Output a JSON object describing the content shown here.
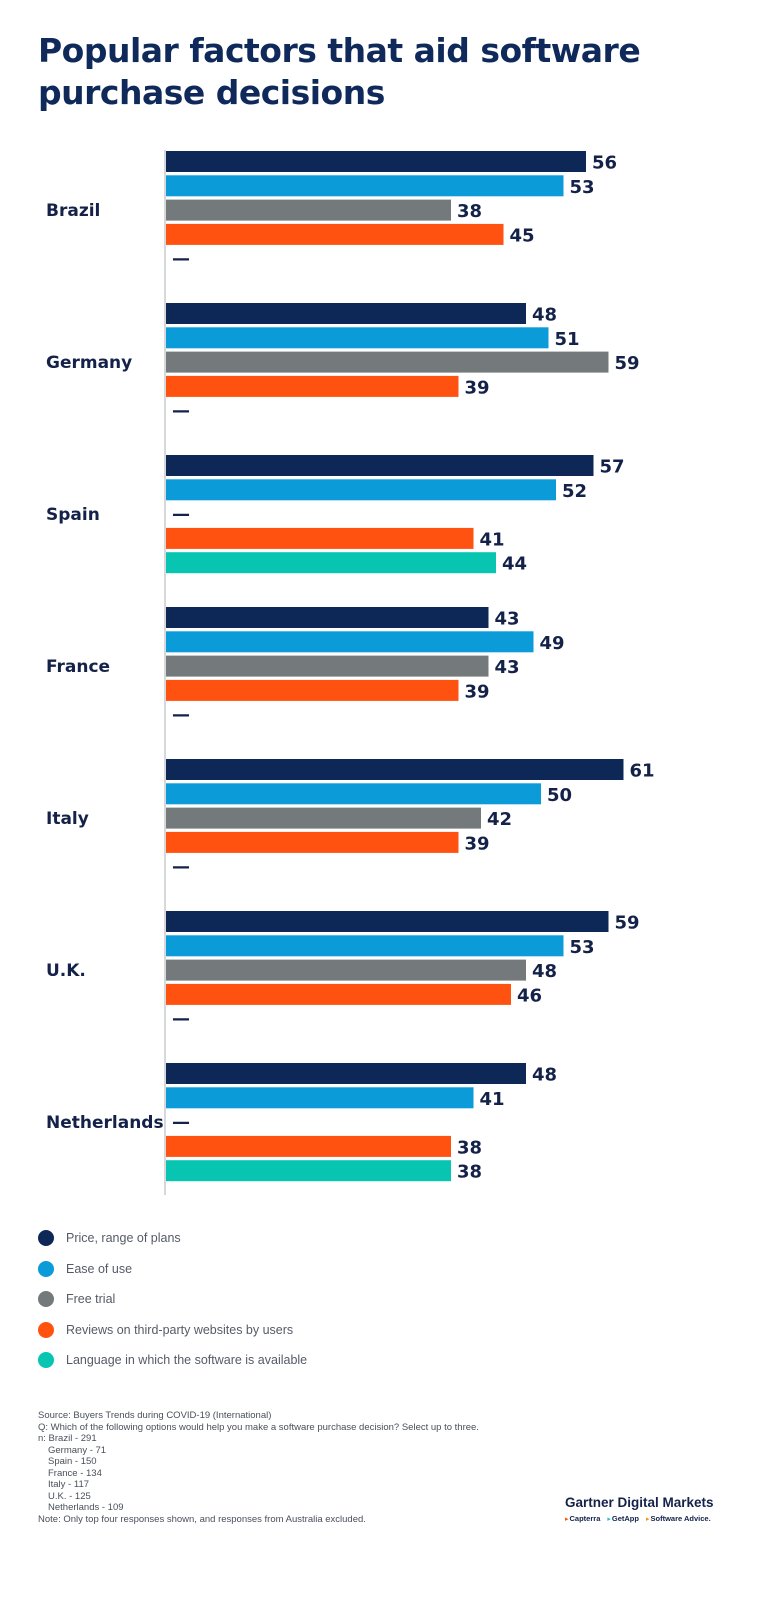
{
  "title": "Popular factors that aid software purchase decisions",
  "colors": {
    "Price, range of plans": "#0d2857",
    "Ease of use": "#0a9bd8",
    "Free trial": "#747a7b",
    "Reviews on third-party websites by users": "#ff5210",
    "Language in which the software is available": "#07c5b0"
  },
  "chart_data": {
    "type": "bar",
    "orientation": "horizontal",
    "title": "Popular factors that aid software purchase decisions",
    "missing_marker": "—",
    "categories": [
      "Brazil",
      "Germany",
      "Spain",
      "France",
      "Italy",
      "U.K.",
      "Netherlands"
    ],
    "series": [
      {
        "name": "Price, range of plans",
        "values": [
          56,
          48,
          57,
          43,
          61,
          59,
          48
        ]
      },
      {
        "name": "Ease of use",
        "values": [
          53,
          51,
          52,
          49,
          50,
          53,
          41
        ]
      },
      {
        "name": "Free trial",
        "values": [
          38,
          59,
          null,
          43,
          42,
          48,
          null
        ]
      },
      {
        "name": "Reviews on third-party websites by users",
        "values": [
          45,
          39,
          41,
          39,
          39,
          46,
          38
        ]
      },
      {
        "name": "Language in which the software is available",
        "values": [
          null,
          null,
          44,
          null,
          null,
          null,
          38
        ]
      }
    ],
    "legend": "bottom"
  },
  "notes": {
    "source": "Source: Buyers Trends during COVID-19 (International)",
    "question": "Q: Which of the following options would help you make a software purchase decision? Select up to three.",
    "n_first": "n: Brazil -  291",
    "n_rest": [
      "Germany - 71",
      "Spain - 150",
      "France - 134",
      "Italy - 117",
      "U.K. - 125",
      "Netherlands - 109"
    ],
    "note": "Note: Only top four responses shown, and responses from Australia excluded."
  },
  "brand": {
    "name": "Gartner Digital Markets",
    "subbrands": [
      "Capterra",
      "GetApp",
      "Software Advice."
    ]
  }
}
